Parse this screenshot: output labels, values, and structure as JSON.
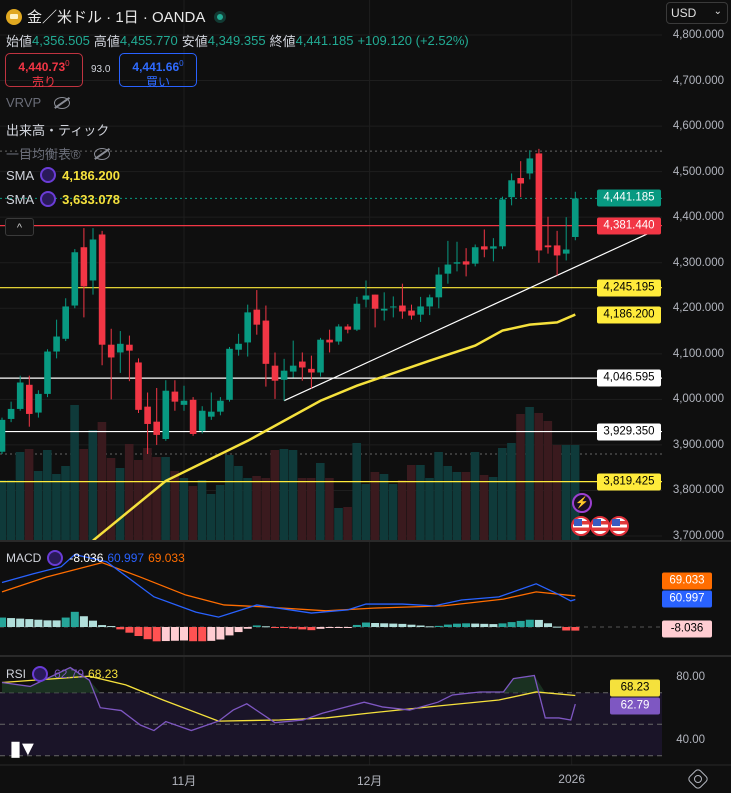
{
  "header": {
    "title": "金／米ドル · 1日 · OANDA",
    "open_label": "始値",
    "open": "4,356.505",
    "high_label": "高値",
    "high": "4,455.770",
    "low_label": "安値",
    "low": "4,349.355",
    "close_label": "終値",
    "close": "4,441.185",
    "change": "+109.120 (+2.52%)"
  },
  "trade": {
    "sell_price": "4,440.73",
    "sell_sup": "0",
    "sell_label": "売り",
    "spread": "93.0",
    "buy_price": "4,441.66",
    "buy_sup": "0",
    "buy_label": "買い"
  },
  "indicators": {
    "vrvp": "VRVP",
    "volume": "出来高・ティック",
    "ichimoku": "一目均衡表®",
    "sma1_label": "SMA",
    "sma1_value": "4,186.200",
    "sma2_label": "SMA",
    "sma2_value": "3,633.078",
    "collapse": "^"
  },
  "currency": {
    "selected": "USD"
  },
  "price_axis": [
    "4,800.000",
    "4,700.000",
    "4,600.000",
    "4,500.000",
    "4,400.000",
    "4,300.000",
    "4,200.000",
    "4,100.000",
    "4,000.000",
    "3,900.000",
    "3,800.000",
    "3,700.000"
  ],
  "price_tags": [
    {
      "text": "4,441.185",
      "bg": "#089981",
      "fg": "#ffffff",
      "price": 4441.185
    },
    {
      "text": "4,381.440",
      "bg": "#f23645",
      "fg": "#ffffff",
      "price": 4381.44
    },
    {
      "text": "4,245.195",
      "bg": "#ffeb3b",
      "fg": "#000000",
      "price": 4245.195
    },
    {
      "text": "4,186.200",
      "bg": "#ffeb3b",
      "fg": "#000000",
      "price": 4186.2
    },
    {
      "text": "4,046.595",
      "bg": "#ffffff",
      "fg": "#000000",
      "price": 4046.595
    },
    {
      "text": "3,929.350",
      "bg": "#ffffff",
      "fg": "#000000",
      "price": 3929.35
    },
    {
      "text": "3,819.425",
      "bg": "#ffeb3b",
      "fg": "#000000",
      "price": 3819.425
    }
  ],
  "hlines": [
    {
      "price": 4381.44,
      "color": "#f23645"
    },
    {
      "price": 4245.195,
      "color": "#ffeb3b"
    },
    {
      "price": 4046.595,
      "color": "#ffffff"
    },
    {
      "price": 3929.35,
      "color": "#ffffff"
    },
    {
      "price": 3819.425,
      "color": "#ffeb3b"
    }
  ],
  "trendline": {
    "from": [
      32,
      3997
    ],
    "to": [
      72,
      4364
    ],
    "color": "#ffffff"
  },
  "colors": {
    "up": "#089981",
    "down": "#f23645",
    "sma": "#f5e13c",
    "macd": "#2962ff",
    "signal": "#ff6d00",
    "rsi": "#7e57c2",
    "rsi_ma": "#f5e13c"
  },
  "chart_data": {
    "type": "candlestick",
    "ylim": [
      3700,
      4800
    ],
    "ohlc": [
      [
        3885,
        3960,
        3880,
        3955
      ],
      [
        3957,
        3995,
        3950,
        3979
      ],
      [
        3979,
        4052,
        3975,
        4037
      ],
      [
        4032,
        4052,
        3940,
        3968
      ],
      [
        3971,
        4020,
        3960,
        4012
      ],
      [
        4012,
        4110,
        4005,
        4105
      ],
      [
        4105,
        4175,
        4090,
        4138
      ],
      [
        4133,
        4222,
        4128,
        4204
      ],
      [
        4206,
        4330,
        4200,
        4323
      ],
      [
        4334,
        4376,
        4180,
        4248
      ],
      [
        4261,
        4376,
        4230,
        4351
      ],
      [
        4362,
        4370,
        4075,
        4120
      ],
      [
        4120,
        4155,
        4000,
        4092
      ],
      [
        4103,
        4150,
        4058,
        4122
      ],
      [
        4120,
        4140,
        4040,
        4107
      ],
      [
        4081,
        4090,
        3970,
        3977
      ],
      [
        3984,
        4015,
        3880,
        3946
      ],
      [
        3951,
        4025,
        3900,
        3922
      ],
      [
        3913,
        4042,
        3909,
        4019
      ],
      [
        4017,
        4042,
        3975,
        3995
      ],
      [
        3988,
        4030,
        3975,
        3997
      ],
      [
        3999,
        4005,
        3920,
        3924
      ],
      [
        3931,
        3985,
        3925,
        3975
      ],
      [
        3962,
        4015,
        3955,
        3973
      ],
      [
        3973,
        4005,
        3965,
        3997
      ],
      [
        3999,
        4115,
        3995,
        4111
      ],
      [
        4109,
        4144,
        4096,
        4122
      ],
      [
        4125,
        4208,
        4094,
        4191
      ],
      [
        4197,
        4240,
        4142,
        4164
      ],
      [
        4173,
        4206,
        4028,
        4078
      ],
      [
        4074,
        4103,
        4001,
        4041
      ],
      [
        4043,
        4089,
        3997,
        4063
      ],
      [
        4061,
        4129,
        4048,
        4074
      ],
      [
        4083,
        4103,
        4041,
        4070
      ],
      [
        4067,
        4096,
        4024,
        4059
      ],
      [
        4059,
        4135,
        4050,
        4131
      ],
      [
        4131,
        4153,
        4103,
        4125
      ],
      [
        4127,
        4165,
        4120,
        4160
      ],
      [
        4160,
        4165,
        4145,
        4153
      ],
      [
        4153,
        4225,
        4150,
        4210
      ],
      [
        4219,
        4261,
        4202,
        4228
      ],
      [
        4230,
        4230,
        4158,
        4199
      ],
      [
        4195,
        4235,
        4173,
        4199
      ],
      [
        4202,
        4226,
        4180,
        4204
      ],
      [
        4206,
        4254,
        4177,
        4193
      ],
      [
        4195,
        4208,
        4175,
        4184
      ],
      [
        4186,
        4225,
        4170,
        4204
      ],
      [
        4204,
        4230,
        4185,
        4224
      ],
      [
        4224,
        4290,
        4200,
        4274
      ],
      [
        4276,
        4348,
        4254,
        4296
      ],
      [
        4298,
        4346,
        4281,
        4301
      ],
      [
        4303,
        4332,
        4270,
        4296
      ],
      [
        4298,
        4340,
        4292,
        4334
      ],
      [
        4336,
        4373,
        4312,
        4329
      ],
      [
        4331,
        4354,
        4303,
        4336
      ],
      [
        4336,
        4445,
        4330,
        4439
      ],
      [
        4444,
        4496,
        4426,
        4481
      ],
      [
        4486,
        4523,
        4444,
        4474
      ],
      [
        4496,
        4547,
        4483,
        4529
      ],
      [
        4540,
        4550,
        4300,
        4327
      ],
      [
        4338,
        4401,
        4320,
        4334
      ],
      [
        4338,
        4370,
        4272,
        4316
      ],
      [
        4320,
        4400,
        4305,
        4329
      ],
      [
        4356.505,
        4455.77,
        4349.355,
        4441.185
      ]
    ],
    "volume": [
      60,
      60,
      88,
      91,
      69,
      90,
      66,
      74,
      135,
      91,
      110,
      118,
      82,
      72,
      96,
      80,
      92,
      83,
      83,
      69,
      62,
      54,
      60,
      46,
      55,
      85,
      74,
      62,
      64,
      62,
      90,
      91,
      90,
      62,
      62,
      77,
      62,
      32,
      33,
      97,
      56,
      68,
      66,
      56,
      60,
      75,
      75,
      62,
      88,
      74,
      68,
      68,
      88,
      65,
      63,
      92,
      97,
      126,
      133,
      127,
      119,
      95,
      95,
      95
    ],
    "sma": [
      [
        11,
        3690
      ],
      [
        19,
        3821
      ],
      [
        28,
        3909
      ],
      [
        36,
        3997
      ],
      [
        40,
        4030
      ],
      [
        48,
        4085
      ],
      [
        53,
        4118
      ],
      [
        56,
        4151
      ],
      [
        59,
        4164
      ],
      [
        62,
        4169
      ],
      [
        64,
        4186.2
      ]
    ],
    "macd": {
      "range": [
        -45,
        160
      ],
      "macd": [
        [
          1,
          99
        ],
        [
          4.4,
          118
        ],
        [
          7.5,
          134
        ],
        [
          9,
          161
        ],
        [
          12.5,
          145
        ],
        [
          17.7,
          67
        ],
        [
          22.3,
          33
        ],
        [
          24.8,
          22
        ],
        [
          29,
          49
        ],
        [
          35,
          31
        ],
        [
          39,
          38
        ],
        [
          41,
          51
        ],
        [
          45,
          51
        ],
        [
          48.5,
          47
        ],
        [
          51.5,
          60
        ],
        [
          55.6,
          67
        ],
        [
          59.7,
          96
        ],
        [
          62,
          74
        ],
        [
          63.5,
          58
        ],
        [
          64,
          60.997
        ]
      ],
      "signal": [
        [
          1,
          78
        ],
        [
          5.9,
          111
        ],
        [
          12,
          143
        ],
        [
          16.2,
          111
        ],
        [
          21.2,
          71
        ],
        [
          25.4,
          49
        ],
        [
          29.5,
          45
        ],
        [
          36.6,
          36
        ],
        [
          41.8,
          42
        ],
        [
          49.5,
          47
        ],
        [
          56.1,
          62
        ],
        [
          59.7,
          78
        ],
        [
          64,
          69.033
        ]
      ],
      "macd_value": "60.997",
      "signal_value": "69.033",
      "hist_value": "-8.036",
      "label": "MACD"
    },
    "rsi": {
      "range": [
        20,
        90
      ],
      "levels": [
        70,
        50,
        30
      ],
      "label": "RSI",
      "value": "62.79",
      "ma_value": "68.23",
      "axis": [
        "80.00",
        "40.00"
      ],
      "rsi": [
        [
          1,
          76.5
        ],
        [
          4.1,
          74
        ],
        [
          8.5,
          86
        ],
        [
          10.6,
          78
        ],
        [
          11.8,
          60.5
        ],
        [
          14.1,
          58.7
        ],
        [
          16.2,
          49.5
        ],
        [
          17.7,
          46
        ],
        [
          19,
          51.7
        ],
        [
          21.8,
          46
        ],
        [
          24.8,
          52
        ],
        [
          26.4,
          59
        ],
        [
          27.9,
          63
        ],
        [
          31,
          51
        ],
        [
          34.1,
          52.7
        ],
        [
          36.2,
          57
        ],
        [
          40.8,
          64
        ],
        [
          42.8,
          61
        ],
        [
          45.8,
          59
        ],
        [
          48.9,
          64
        ],
        [
          50.5,
          68.6
        ],
        [
          53.5,
          70.5
        ],
        [
          56.1,
          70.5
        ],
        [
          57.2,
          79
        ],
        [
          59.5,
          81
        ],
        [
          60.7,
          54
        ],
        [
          62.2,
          54
        ],
        [
          63.5,
          52.7
        ],
        [
          64,
          62.79
        ]
      ],
      "ma": [
        [
          1,
          76.5
        ],
        [
          10.6,
          80.5
        ],
        [
          14.6,
          75
        ],
        [
          18.7,
          65.4
        ],
        [
          24.8,
          52
        ],
        [
          31.5,
          52.7
        ],
        [
          36.6,
          54
        ],
        [
          41.2,
          57
        ],
        [
          48.9,
          61.6
        ],
        [
          55.6,
          65.4
        ],
        [
          59.7,
          70.5
        ],
        [
          64,
          68.23
        ]
      ]
    },
    "time_axis": [
      {
        "label": "11月",
        "index": 21
      },
      {
        "label": "12月",
        "index": 41.4
      },
      {
        "label": "2026",
        "index": 63.6
      }
    ]
  }
}
